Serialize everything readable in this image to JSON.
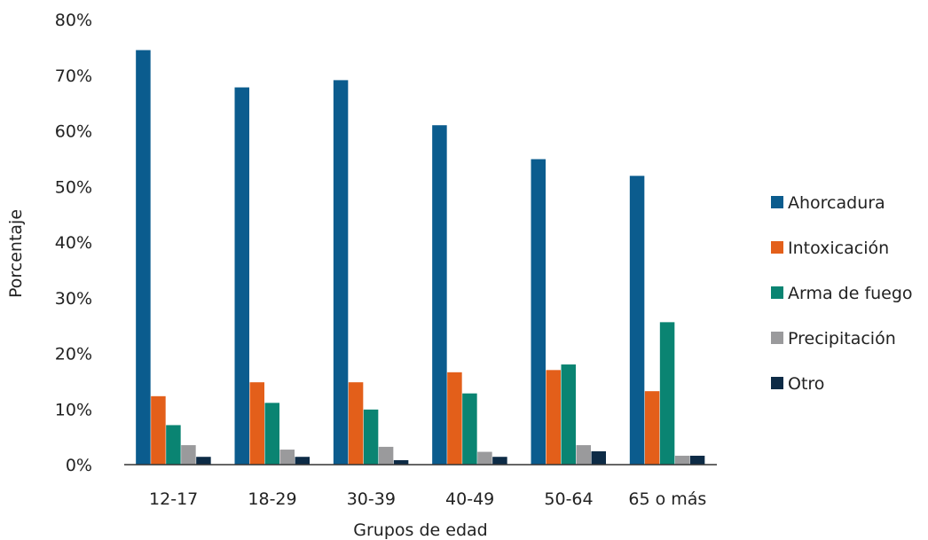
{
  "chart_data": {
    "type": "bar",
    "title": "",
    "xlabel": "Grupos de edad",
    "ylabel": "Porcentaje",
    "ylim": [
      0,
      80
    ],
    "yticks": [
      "0%",
      "10%",
      "20%",
      "30%",
      "40%",
      "50%",
      "60%",
      "70%",
      "80%"
    ],
    "categories": [
      "12-17",
      "18-29",
      "30-39",
      "40-49",
      "50-64",
      "65 o más"
    ],
    "series": [
      {
        "name": "Ahorcadura",
        "color": "#0b5c8e",
        "values": [
          74.5,
          67.8,
          69.1,
          61.0,
          54.9,
          51.9
        ]
      },
      {
        "name": "Intoxicación",
        "color": "#e35f1a",
        "values": [
          12.3,
          14.8,
          14.8,
          16.6,
          17.0,
          13.2
        ]
      },
      {
        "name": "Arma de fuego",
        "color": "#0a8472",
        "values": [
          7.1,
          11.1,
          9.9,
          12.8,
          18.0,
          25.6
        ]
      },
      {
        "name": "Precipitación",
        "color": "#9a9a9c",
        "values": [
          3.5,
          2.7,
          3.2,
          2.3,
          3.5,
          1.6
        ]
      },
      {
        "name": "Otro",
        "color": "#0d2b46",
        "values": [
          1.4,
          1.4,
          0.8,
          1.4,
          2.4,
          1.6
        ]
      }
    ],
    "grid": false,
    "legend_position": "right"
  }
}
